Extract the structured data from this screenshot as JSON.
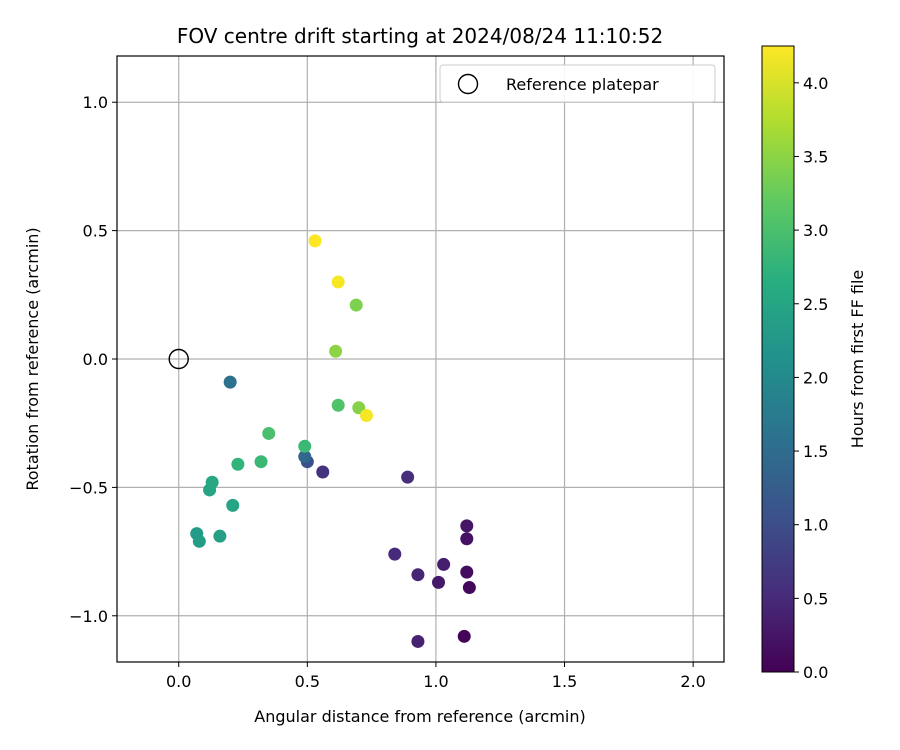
{
  "chart_data": {
    "type": "scatter",
    "title": "FOV centre drift starting at 2024/08/24 11:10:52",
    "xlabel": "Angular distance from reference (arcmin)",
    "ylabel": "Rotation from reference (arcmin)",
    "xlim": [
      -0.24,
      2.12
    ],
    "ylim": [
      -1.18,
      1.18
    ],
    "x_ticks": [
      0.0,
      0.5,
      1.0,
      1.5,
      2.0
    ],
    "y_ticks": [
      -1.0,
      -0.5,
      0.0,
      0.5,
      1.0
    ],
    "x_tick_labels": [
      "0.0",
      "0.5",
      "1.0",
      "1.5",
      "2.0"
    ],
    "y_tick_labels": [
      "−1.0",
      "−0.5",
      "0.0",
      "0.5",
      "1.0"
    ],
    "grid": true,
    "legend": {
      "position": "top-right",
      "entries": [
        "Reference platepar"
      ]
    },
    "reference_point": {
      "x": 0.0,
      "y": 0.0,
      "label": "Reference platepar"
    },
    "colorbar": {
      "label": "Hours from first FF file",
      "colormap": "viridis",
      "range": [
        0.0,
        4.25
      ],
      "ticks": [
        0.0,
        0.5,
        1.0,
        1.5,
        2.0,
        2.5,
        3.0,
        3.5,
        4.0
      ],
      "tick_labels": [
        "0.0",
        "0.5",
        "1.0",
        "1.5",
        "2.0",
        "2.5",
        "3.0",
        "3.5",
        "4.0"
      ]
    },
    "points": [
      {
        "x": 1.11,
        "y": -1.08,
        "hours": 0.05
      },
      {
        "x": 1.13,
        "y": -0.89,
        "hours": 0.1
      },
      {
        "x": 1.12,
        "y": -0.83,
        "hours": 0.15
      },
      {
        "x": 1.12,
        "y": -0.7,
        "hours": 0.2
      },
      {
        "x": 1.12,
        "y": -0.65,
        "hours": 0.25
      },
      {
        "x": 1.01,
        "y": -0.87,
        "hours": 0.3
      },
      {
        "x": 1.03,
        "y": -0.8,
        "hours": 0.35
      },
      {
        "x": 0.93,
        "y": -1.1,
        "hours": 0.4
      },
      {
        "x": 0.93,
        "y": -0.84,
        "hours": 0.45
      },
      {
        "x": 0.84,
        "y": -0.76,
        "hours": 0.5
      },
      {
        "x": 0.89,
        "y": -0.46,
        "hours": 0.55
      },
      {
        "x": 0.56,
        "y": -0.44,
        "hours": 0.6
      },
      {
        "x": 0.5,
        "y": -0.4,
        "hours": 1.05
      },
      {
        "x": 0.49,
        "y": -0.38,
        "hours": 1.4
      },
      {
        "x": 0.2,
        "y": -0.09,
        "hours": 1.6
      },
      {
        "x": 0.07,
        "y": -0.68,
        "hours": 2.3
      },
      {
        "x": 0.08,
        "y": -0.71,
        "hours": 2.35
      },
      {
        "x": 0.16,
        "y": -0.69,
        "hours": 2.4
      },
      {
        "x": 0.21,
        "y": -0.57,
        "hours": 2.5
      },
      {
        "x": 0.12,
        "y": -0.51,
        "hours": 2.5
      },
      {
        "x": 0.13,
        "y": -0.48,
        "hours": 2.55
      },
      {
        "x": 0.23,
        "y": -0.41,
        "hours": 2.75
      },
      {
        "x": 0.32,
        "y": -0.4,
        "hours": 2.85
      },
      {
        "x": 0.49,
        "y": -0.34,
        "hours": 2.85
      },
      {
        "x": 0.35,
        "y": -0.29,
        "hours": 3.0
      },
      {
        "x": 0.62,
        "y": -0.18,
        "hours": 3.05
      },
      {
        "x": 0.69,
        "y": 0.21,
        "hours": 3.4
      },
      {
        "x": 0.7,
        "y": -0.19,
        "hours": 3.45
      },
      {
        "x": 0.61,
        "y": 0.03,
        "hours": 3.5
      },
      {
        "x": 0.73,
        "y": -0.22,
        "hours": 4.2
      },
      {
        "x": 0.62,
        "y": 0.3,
        "hours": 4.2
      },
      {
        "x": 0.53,
        "y": 0.46,
        "hours": 4.25
      }
    ]
  }
}
